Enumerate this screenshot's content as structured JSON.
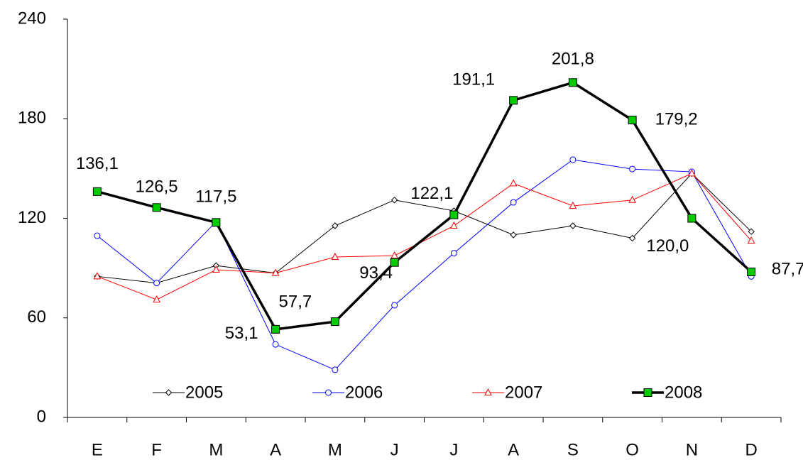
{
  "chart_data": {
    "type": "line",
    "categories": [
      "E",
      "F",
      "M",
      "A",
      "M",
      "J",
      "J",
      "A",
      "S",
      "O",
      "N",
      "D"
    ],
    "series": [
      {
        "name": "2005",
        "color": "#000000",
        "marker": "diamond",
        "values": [
          85,
          81,
          91.5,
          87,
          115.5,
          131,
          124.5,
          110,
          115.5,
          108,
          147,
          112
        ]
      },
      {
        "name": "2006",
        "color": "#0000ff",
        "marker": "circle",
        "values": [
          109.5,
          81,
          118,
          44,
          28.7,
          67.6,
          99,
          129.6,
          155.3,
          149.7,
          148,
          85
        ]
      },
      {
        "name": "2007",
        "color": "#ff0000",
        "marker": "triangle",
        "values": [
          85,
          71,
          89,
          87,
          96.7,
          97.5,
          115.5,
          141,
          127.5,
          131,
          147,
          106.5
        ]
      },
      {
        "name": "2008",
        "color": "#000000",
        "marker": "square",
        "marker_color": "#00cc00",
        "values": [
          136.1,
          126.5,
          117.5,
          53.1,
          57.7,
          93.4,
          122.1,
          191.1,
          201.8,
          179.2,
          120.0,
          87.7
        ],
        "value_labels": [
          "136,1",
          "126,5",
          "117,5",
          "53,1",
          "57,7",
          "93,4",
          "122,1",
          "191,1",
          "201,8",
          "179,2",
          "120,0",
          "87,7"
        ]
      }
    ],
    "ylim": [
      0,
      240
    ],
    "yticks": [
      0,
      60,
      120,
      180,
      240
    ],
    "grid": false,
    "legend": "bottom"
  }
}
